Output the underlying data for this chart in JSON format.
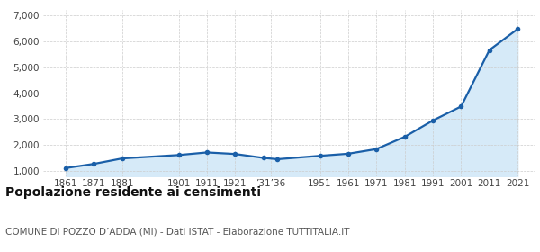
{
  "years": [
    1861,
    1871,
    1881,
    1901,
    1911,
    1921,
    1931,
    1936,
    1951,
    1961,
    1971,
    1981,
    1991,
    2001,
    2011,
    2021
  ],
  "population": [
    1120,
    1280,
    1490,
    1620,
    1720,
    1660,
    1510,
    1460,
    1590,
    1670,
    1850,
    2320,
    2950,
    3490,
    5660,
    6470
  ],
  "line_color": "#1a5fa8",
  "fill_color": "#d6eaf8",
  "marker_color": "#1a5fa8",
  "bg_color": "#ffffff",
  "grid_color": "#cccccc",
  "title": "Popolazione residente ai censimenti",
  "subtitle": "COMUNE DI POZZO D’ADDA (MI) - Dati ISTAT - Elaborazione TUTTITALIA.IT",
  "title_fontsize": 10,
  "subtitle_fontsize": 7.5,
  "ylim": [
    800,
    7200
  ],
  "yticks": [
    1000,
    2000,
    3000,
    4000,
    5000,
    6000,
    7000
  ],
  "xlim": [
    1853,
    2027
  ]
}
